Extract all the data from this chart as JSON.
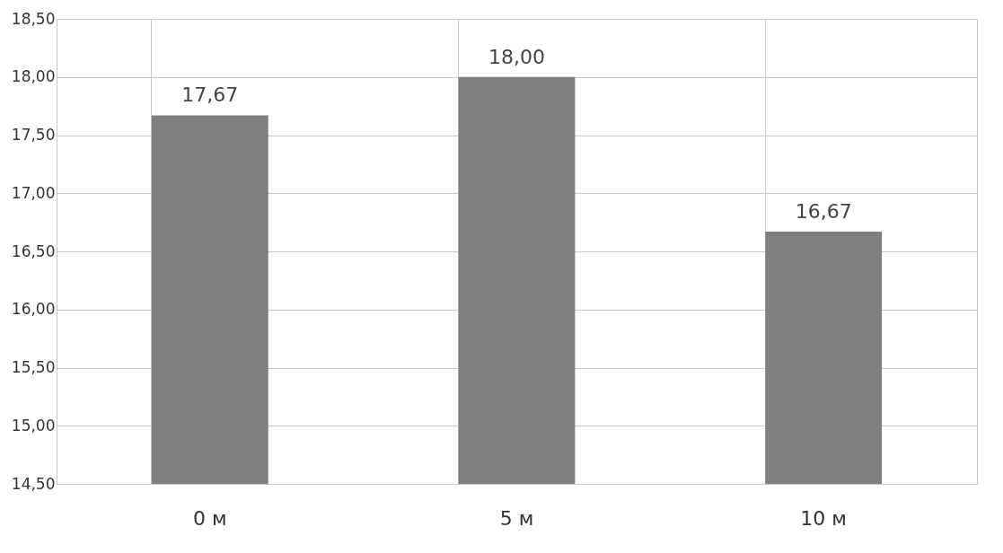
{
  "chart_data": {
    "type": "bar",
    "categories": [
      "0 м",
      "5 м",
      "10 м"
    ],
    "values": [
      17.67,
      18.0,
      16.67
    ],
    "value_labels": [
      "17,67",
      "18,00",
      "16,67"
    ],
    "color": "#7f7f7f",
    "ylim": [
      14.5,
      18.5
    ],
    "yticks": [
      {
        "value": 14.5,
        "label": "14,50"
      },
      {
        "value": 15.0,
        "label": "15,00"
      },
      {
        "value": 15.5,
        "label": "15,50"
      },
      {
        "value": 16.0,
        "label": "16,00"
      },
      {
        "value": 16.5,
        "label": "16,50"
      },
      {
        "value": 17.0,
        "label": "17,00"
      },
      {
        "value": 17.5,
        "label": "17,50"
      },
      {
        "value": 18.0,
        "label": "18,00"
      },
      {
        "value": 18.5,
        "label": "18,50"
      }
    ],
    "grid": true
  }
}
